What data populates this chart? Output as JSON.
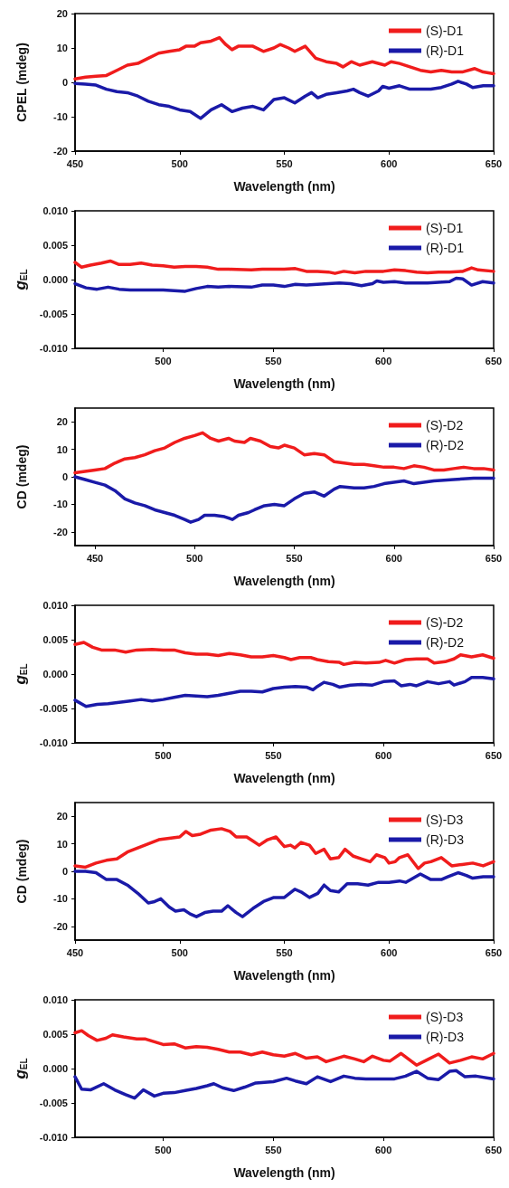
{
  "chart_data": [
    {
      "type": "line",
      "xlabel": "Wavelength (nm)",
      "ylabel": "CPEL (mdeg)",
      "xlim": [
        450,
        650
      ],
      "xticks": [
        450,
        500,
        550,
        600,
        650
      ],
      "ylim": [
        -20,
        20
      ],
      "yticks": [
        -20,
        -10,
        0,
        10,
        20
      ],
      "grid": false,
      "legend": "top right",
      "marker": "none",
      "line_style": "solid",
      "series": [
        {
          "name": "(S)-D1",
          "color": "#f01c1c",
          "x": [
            450,
            455,
            460,
            465,
            470,
            475,
            480,
            485,
            490,
            495,
            500,
            503,
            507,
            510,
            515,
            519,
            522,
            525,
            528,
            535,
            540,
            545,
            548,
            552,
            555,
            560,
            565,
            570,
            575,
            578,
            582,
            586,
            592,
            598,
            601,
            605,
            610,
            615,
            620,
            625,
            630,
            635,
            641,
            645,
            650
          ],
          "values": [
            1,
            1.5,
            1.8,
            2,
            3.5,
            5,
            5.5,
            7,
            8.5,
            9,
            9.5,
            10.5,
            10.5,
            11.5,
            12,
            13,
            11,
            9.5,
            10.5,
            10.5,
            9,
            10,
            11,
            10,
            9,
            10.5,
            7,
            6,
            5.5,
            4.5,
            6,
            5,
            6,
            5,
            6,
            5.5,
            4.5,
            3.5,
            3,
            3.5,
            3,
            3,
            4,
            3,
            2.5
          ]
        },
        {
          "name": "(R)-D1",
          "color": "#1a1aa8",
          "x": [
            450,
            455,
            460,
            465,
            470,
            475,
            480,
            485,
            490,
            495,
            500,
            505,
            510,
            515,
            520,
            525,
            530,
            535,
            540,
            545,
            550,
            555,
            560,
            563,
            566,
            570,
            575,
            580,
            583,
            586,
            590,
            595,
            597,
            600,
            605,
            610,
            615,
            620,
            625,
            630,
            633,
            637,
            640,
            645,
            650
          ],
          "values": [
            -0.3,
            -0.5,
            -0.8,
            -2,
            -2.7,
            -3,
            -4,
            -5.5,
            -6.5,
            -7,
            -8,
            -8.5,
            -10.5,
            -8,
            -6.5,
            -8.5,
            -7.5,
            -7,
            -8,
            -5,
            -4.5,
            -6,
            -4,
            -3,
            -4.5,
            -3.5,
            -3,
            -2.5,
            -2,
            -3,
            -4,
            -2.5,
            -1.2,
            -1.7,
            -1,
            -2,
            -2,
            -2,
            -1.5,
            -0.5,
            0.3,
            -0.5,
            -1.5,
            -1,
            -1
          ]
        }
      ]
    },
    {
      "type": "line",
      "xlabel": "Wavelength (nm)",
      "ylabel": "g$_{EL}$",
      "xlim": [
        460,
        650
      ],
      "xticks": [
        500,
        550,
        600,
        650
      ],
      "ylim": [
        -0.01,
        0.01
      ],
      "yticks": [
        {
          "value": -0.01,
          "label": "-0.010"
        },
        -0.005,
        {
          "value": 0,
          "label": "0.000"
        },
        0.005,
        {
          "value": 0.01,
          "label": "0.010"
        }
      ],
      "grid": false,
      "legend": "top right",
      "marker": "none",
      "line_style": "solid",
      "series": [
        {
          "name": "(S)-D1",
          "color": "#f01c1c",
          "x": [
            460,
            463,
            467,
            472,
            476,
            480,
            485,
            490,
            495,
            500,
            505,
            510,
            515,
            520,
            525,
            530,
            540,
            545,
            550,
            555,
            560,
            565,
            570,
            575,
            578,
            582,
            587,
            592,
            600,
            605,
            610,
            615,
            620,
            625,
            630,
            636,
            640,
            643,
            650
          ],
          "values": [
            0.0025,
            0.0018,
            0.0021,
            0.0024,
            0.0027,
            0.0022,
            0.0022,
            0.0024,
            0.0021,
            0.002,
            0.0018,
            0.0019,
            0.0019,
            0.0018,
            0.0015,
            0.0015,
            0.0014,
            0.0015,
            0.0015,
            0.0015,
            0.0016,
            0.0012,
            0.0012,
            0.0011,
            0.0009,
            0.0012,
            0.001,
            0.0012,
            0.0012,
            0.0014,
            0.0013,
            0.0011,
            0.001,
            0.0011,
            0.0011,
            0.0012,
            0.0017,
            0.0014,
            0.0012
          ]
        },
        {
          "name": "(R)-D1",
          "color": "#1a1aa8",
          "x": [
            460,
            465,
            470,
            475,
            480,
            485,
            490,
            500,
            505,
            510,
            515,
            520,
            525,
            530,
            540,
            545,
            550,
            555,
            560,
            565,
            570,
            575,
            580,
            585,
            590,
            595,
            597,
            600,
            605,
            610,
            615,
            620,
            625,
            630,
            633,
            636,
            640,
            645,
            650
          ],
          "values": [
            -0.0006,
            -0.0012,
            -0.0014,
            -0.0011,
            -0.0014,
            -0.0015,
            -0.0015,
            -0.0015,
            -0.0016,
            -0.0017,
            -0.0013,
            -0.001,
            -0.0011,
            -0.001,
            -0.0011,
            -0.0008,
            -0.0008,
            -0.001,
            -0.0007,
            -0.0008,
            -0.0007,
            -0.0006,
            -0.0005,
            -0.0006,
            -0.0009,
            -0.0006,
            -0.0002,
            -0.0004,
            -0.0003,
            -0.0005,
            -0.0005,
            -0.0005,
            -0.0004,
            -0.0003,
            0.0002,
            0.0001,
            -0.0008,
            -0.0003,
            -0.0005
          ]
        }
      ]
    },
    {
      "type": "line",
      "xlabel": "Wavelength (nm)",
      "ylabel": "CD (mdeg)",
      "xlim": [
        440,
        650
      ],
      "xticks": [
        450,
        500,
        550,
        600,
        650
      ],
      "ylim": [
        -25,
        25
      ],
      "yticks": [
        -20,
        -10,
        0,
        10,
        20
      ],
      "grid": false,
      "legend": "top right",
      "marker": "none",
      "line_style": "solid",
      "series": [
        {
          "name": "(S)-D2",
          "color": "#f01c1c",
          "x": [
            440,
            445,
            450,
            455,
            460,
            465,
            470,
            475,
            480,
            485,
            490,
            495,
            500,
            504,
            508,
            512,
            517,
            520,
            525,
            528,
            533,
            538,
            542,
            545,
            550,
            555,
            560,
            565,
            570,
            575,
            580,
            585,
            590,
            595,
            600,
            605,
            610,
            615,
            620,
            625,
            630,
            635,
            640,
            645,
            650
          ],
          "values": [
            1.5,
            2,
            2.5,
            3,
            5,
            6.5,
            7,
            8,
            9.5,
            10.5,
            12.5,
            14,
            15,
            16,
            14,
            13,
            14,
            13,
            12.5,
            14,
            13,
            11,
            10.5,
            11.5,
            10.5,
            8,
            8.5,
            8,
            5.5,
            5,
            4.5,
            4.5,
            4,
            3.5,
            3.5,
            3,
            4,
            3.5,
            2.5,
            2.5,
            3,
            3.5,
            3,
            3,
            2.5
          ]
        },
        {
          "name": "(R)-D2",
          "color": "#1a1aa8",
          "x": [
            440,
            445,
            450,
            455,
            460,
            465,
            470,
            475,
            480,
            485,
            490,
            495,
            498,
            502,
            505,
            510,
            515,
            519,
            522,
            527,
            530,
            535,
            540,
            545,
            550,
            555,
            560,
            565,
            570,
            573,
            580,
            585,
            590,
            595,
            600,
            605,
            610,
            615,
            620,
            630,
            640,
            650
          ],
          "values": [
            0,
            -1,
            -2,
            -3,
            -5,
            -8,
            -9.5,
            -10.5,
            -12,
            -13,
            -14,
            -15.5,
            -16.5,
            -15.5,
            -14,
            -14,
            -14.5,
            -15.5,
            -14,
            -13,
            -12,
            -10.5,
            -10,
            -10.5,
            -8,
            -6,
            -5.5,
            -7,
            -4.5,
            -3.5,
            -4,
            -4,
            -3.5,
            -2.5,
            -2,
            -1.5,
            -2.5,
            -2,
            -1.5,
            -1,
            -0.5,
            -0.5
          ]
        }
      ]
    },
    {
      "type": "line",
      "xlabel": "Wavelength (nm)",
      "ylabel": "g$_{EL}$",
      "xlim": [
        460,
        650
      ],
      "xticks": [
        500,
        550,
        600,
        650
      ],
      "ylim": [
        -0.01,
        0.01
      ],
      "yticks": [
        {
          "value": -0.01,
          "label": "-0.010"
        },
        -0.005,
        {
          "value": 0,
          "label": "0.000"
        },
        0.005,
        {
          "value": 0.01,
          "label": "0.010"
        }
      ],
      "grid": false,
      "legend": "top right",
      "marker": "none",
      "line_style": "solid",
      "series": [
        {
          "name": "(S)-D2",
          "color": "#f01c1c",
          "x": [
            460,
            464,
            468,
            472,
            478,
            483,
            488,
            495,
            500,
            505,
            510,
            515,
            520,
            525,
            530,
            535,
            540,
            545,
            550,
            555,
            558,
            562,
            567,
            570,
            575,
            580,
            582,
            587,
            592,
            598,
            601,
            605,
            610,
            615,
            620,
            623,
            628,
            632,
            635,
            640,
            645,
            650
          ],
          "values": [
            0.0043,
            0.0046,
            0.0039,
            0.0035,
            0.0035,
            0.0032,
            0.0035,
            0.0036,
            0.0035,
            0.0035,
            0.0031,
            0.0029,
            0.0029,
            0.0027,
            0.003,
            0.0028,
            0.0025,
            0.0025,
            0.0027,
            0.0024,
            0.0021,
            0.0024,
            0.0024,
            0.0021,
            0.0018,
            0.0017,
            0.0014,
            0.0017,
            0.0016,
            0.0017,
            0.002,
            0.0016,
            0.0021,
            0.0022,
            0.0022,
            0.0016,
            0.0018,
            0.0022,
            0.0028,
            0.0025,
            0.0028,
            0.0023
          ]
        },
        {
          "name": "(R)-D2",
          "color": "#1a1aa8",
          "x": [
            460,
            465,
            470,
            475,
            480,
            485,
            490,
            495,
            500,
            505,
            510,
            515,
            520,
            525,
            530,
            535,
            540,
            545,
            550,
            555,
            560,
            565,
            568,
            570,
            573,
            577,
            580,
            585,
            590,
            595,
            600,
            605,
            608,
            612,
            615,
            620,
            625,
            630,
            632,
            637,
            640,
            645,
            650
          ],
          "values": [
            -0.0038,
            -0.0047,
            -0.0044,
            -0.0043,
            -0.0041,
            -0.0039,
            -0.0037,
            -0.0039,
            -0.0037,
            -0.0034,
            -0.0031,
            -0.0032,
            -0.0033,
            -0.0031,
            -0.0028,
            -0.0025,
            -0.0025,
            -0.0026,
            -0.0021,
            -0.0019,
            -0.0018,
            -0.0019,
            -0.0023,
            -0.0018,
            -0.0012,
            -0.0015,
            -0.0019,
            -0.0016,
            -0.0015,
            -0.0016,
            -0.0011,
            -0.001,
            -0.0017,
            -0.0015,
            -0.0017,
            -0.0011,
            -0.0014,
            -0.0011,
            -0.0016,
            -0.0011,
            -0.0005,
            -0.0005,
            -0.0007
          ]
        }
      ]
    },
    {
      "type": "line",
      "xlabel": "Wavelength (nm)",
      "ylabel": "CD (mdeg)",
      "xlim": [
        450,
        650
      ],
      "xticks": [
        450,
        500,
        550,
        600,
        650
      ],
      "ylim": [
        -25,
        25
      ],
      "yticks": [
        -20,
        -10,
        0,
        10,
        20
      ],
      "grid": false,
      "legend": "top right",
      "marker": "none",
      "line_style": "solid",
      "series": [
        {
          "name": "(S)-D3",
          "color": "#f01c1c",
          "x": [
            450,
            455,
            460,
            465,
            470,
            475,
            480,
            485,
            490,
            495,
            500,
            503,
            506,
            510,
            515,
            520,
            524,
            527,
            532,
            535,
            538,
            542,
            546,
            550,
            553,
            555,
            558,
            562,
            565,
            569,
            572,
            576,
            579,
            583,
            587,
            591,
            594,
            598,
            600,
            603,
            605,
            609,
            614,
            617,
            620,
            625,
            630,
            635,
            640,
            645,
            650
          ],
          "values": [
            2,
            1.5,
            3,
            4,
            4.5,
            7,
            8.5,
            10,
            11.5,
            12,
            12.5,
            14.5,
            13,
            13.5,
            15,
            15.5,
            14.5,
            12.5,
            12.5,
            11,
            9.5,
            11.5,
            12.5,
            9,
            9.5,
            8.5,
            10.5,
            9.5,
            6.5,
            8,
            4.5,
            5,
            8,
            5.5,
            4.5,
            3.5,
            6,
            5,
            3,
            3.5,
            5,
            6,
            1,
            3,
            3.5,
            5,
            2,
            2.5,
            3,
            2,
            3.5
          ]
        },
        {
          "name": "(R)-D3",
          "color": "#1a1aa8",
          "x": [
            450,
            455,
            460,
            465,
            470,
            475,
            480,
            485,
            488,
            491,
            495,
            498,
            502,
            505,
            508,
            512,
            516,
            520,
            523,
            527,
            530,
            535,
            540,
            545,
            550,
            555,
            558,
            562,
            566,
            569,
            572,
            576,
            580,
            585,
            590,
            595,
            600,
            605,
            608,
            615,
            620,
            625,
            628,
            633,
            637,
            640,
            645,
            650
          ],
          "values": [
            0,
            0,
            -0.5,
            -3,
            -3,
            -5,
            -8,
            -11.5,
            -11,
            -10,
            -13,
            -14.5,
            -14,
            -15.5,
            -16.5,
            -15,
            -14.5,
            -14.5,
            -12.5,
            -15,
            -16.5,
            -13.5,
            -11,
            -9.5,
            -9.5,
            -6.5,
            -7.5,
            -9.5,
            -8,
            -5,
            -7,
            -7.5,
            -4.5,
            -4.5,
            -5,
            -4,
            -4,
            -3.5,
            -4,
            -1,
            -3,
            -3,
            -2,
            -0.5,
            -1.5,
            -2.5,
            -2,
            -2
          ]
        }
      ]
    },
    {
      "type": "line",
      "xlabel": "Wavelength (nm)",
      "ylabel": "g$_{EL}$",
      "xlim": [
        460,
        650
      ],
      "xticks": [
        500,
        550,
        600,
        650
      ],
      "ylim": [
        -0.01,
        0.01
      ],
      "yticks": [
        {
          "value": -0.01,
          "label": "-0.010"
        },
        -0.005,
        {
          "value": 0,
          "label": "0.000"
        },
        0.005,
        {
          "value": 0.01,
          "label": "0.010"
        }
      ],
      "grid": false,
      "legend": "top right",
      "marker": "none",
      "line_style": "solid",
      "series": [
        {
          "name": "(S)-D3",
          "color": "#f01c1c",
          "x": [
            460,
            463,
            466,
            470,
            474,
            477,
            482,
            488,
            492,
            497,
            500,
            505,
            510,
            515,
            520,
            525,
            530,
            535,
            540,
            545,
            550,
            555,
            560,
            565,
            570,
            574,
            578,
            582,
            587,
            591,
            595,
            600,
            603,
            608,
            615,
            620,
            625,
            630,
            635,
            640,
            645,
            650
          ],
          "values": [
            0.0052,
            0.0055,
            0.0048,
            0.0041,
            0.0044,
            0.0049,
            0.0046,
            0.0043,
            0.0043,
            0.0038,
            0.0035,
            0.0036,
            0.003,
            0.0032,
            0.0031,
            0.0028,
            0.0024,
            0.0024,
            0.002,
            0.0024,
            0.002,
            0.0018,
            0.0022,
            0.0015,
            0.0017,
            0.001,
            0.0014,
            0.0018,
            0.0014,
            0.001,
            0.0018,
            0.0012,
            0.0011,
            0.0022,
            0.0005,
            0.0013,
            0.0021,
            0.0008,
            0.0012,
            0.0017,
            0.0014,
            0.0022
          ]
        },
        {
          "name": "(R)-D3",
          "color": "#1a1aa8",
          "x": [
            460,
            463,
            467,
            473,
            478,
            483,
            487,
            491,
            496,
            500,
            505,
            510,
            515,
            520,
            523,
            527,
            532,
            537,
            542,
            550,
            556,
            560,
            565,
            570,
            576,
            582,
            587,
            592,
            600,
            605,
            610,
            615,
            620,
            625,
            630,
            633,
            637,
            642,
            650
          ],
          "values": [
            -0.0012,
            -0.003,
            -0.0031,
            -0.0022,
            -0.0031,
            -0.0038,
            -0.0043,
            -0.0031,
            -0.004,
            -0.0036,
            -0.0035,
            -0.0032,
            -0.0029,
            -0.0025,
            -0.0022,
            -0.0028,
            -0.0032,
            -0.0027,
            -0.0021,
            -0.0019,
            -0.0014,
            -0.0018,
            -0.0022,
            -0.0012,
            -0.0019,
            -0.0011,
            -0.0014,
            -0.0015,
            -0.0015,
            -0.0015,
            -0.0011,
            -0.0004,
            -0.0014,
            -0.0016,
            -0.0004,
            -0.0003,
            -0.0012,
            -0.0011,
            -0.0015
          ]
        }
      ]
    }
  ]
}
